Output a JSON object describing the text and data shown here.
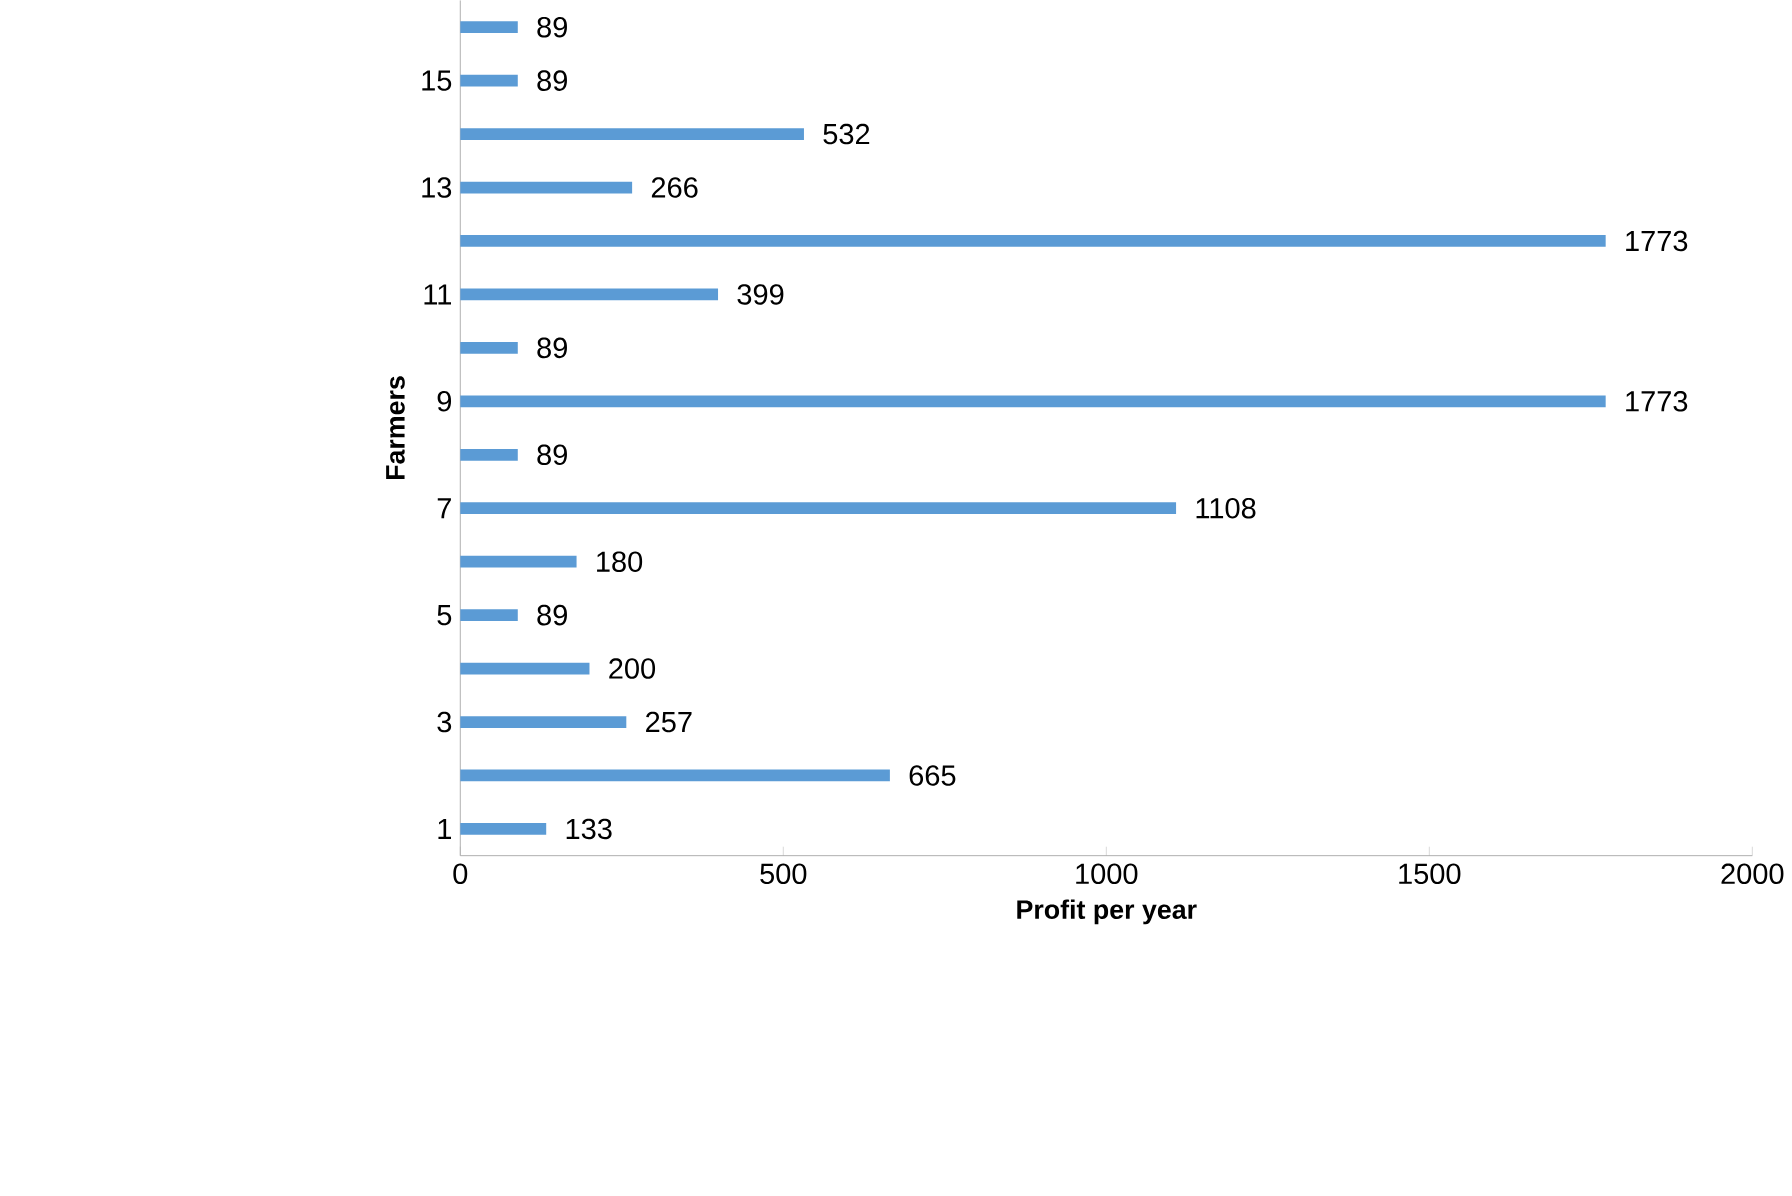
{
  "chart_data": {
    "type": "bar",
    "orientation": "horizontal",
    "xlabel": "Profit per year",
    "ylabel": "Farmers",
    "categories": [
      null,
      "15",
      null,
      "13",
      null,
      "11",
      null,
      "9",
      null,
      "7",
      null,
      "5",
      null,
      "3",
      null,
      "1"
    ],
    "values": [
      89,
      89,
      532,
      266,
      1773,
      399,
      89,
      1773,
      89,
      1108,
      180,
      89,
      200,
      257,
      665,
      133
    ],
    "color": "#5b9bd5",
    "xlim": [
      0,
      2000
    ],
    "xticks": [
      0,
      500,
      1000,
      1500,
      2000
    ],
    "data_labels": true
  }
}
